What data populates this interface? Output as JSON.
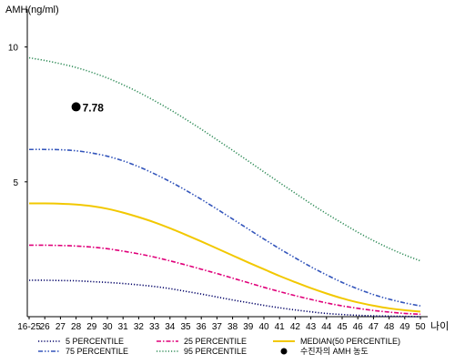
{
  "chart_data": {
    "type": "line",
    "ylabel": "AMH(ng/ml)",
    "xlabel": "나이",
    "x_categories": [
      "16-25",
      "26",
      "27",
      "28",
      "29",
      "30",
      "31",
      "32",
      "33",
      "34",
      "35",
      "36",
      "37",
      "38",
      "39",
      "40",
      "41",
      "42",
      "43",
      "44",
      "45",
      "46",
      "47",
      "48",
      "49",
      "50"
    ],
    "ylim": [
      0,
      11
    ],
    "yticks": [
      5,
      10
    ],
    "series": [
      {
        "name": "5 PERCENTILE",
        "color": "#000066",
        "style": "dotted",
        "values": [
          1.35,
          1.35,
          1.34,
          1.33,
          1.3,
          1.27,
          1.23,
          1.18,
          1.12,
          1.04,
          0.94,
          0.84,
          0.73,
          0.62,
          0.52,
          0.42,
          0.33,
          0.25,
          0.18,
          0.12,
          0.08,
          0.05,
          0.03,
          0.02,
          0.01,
          0.0
        ]
      },
      {
        "name": "25 PERCENTILE",
        "color": "#e0007a",
        "style": "dashdot",
        "values": [
          2.65,
          2.65,
          2.64,
          2.62,
          2.58,
          2.52,
          2.43,
          2.33,
          2.21,
          2.07,
          1.92,
          1.76,
          1.6,
          1.43,
          1.26,
          1.09,
          0.93,
          0.78,
          0.64,
          0.51,
          0.4,
          0.31,
          0.23,
          0.17,
          0.12,
          0.09
        ]
      },
      {
        "name": "MEDIAN(50 PERCENTILE)",
        "color": "#f2c800",
        "style": "solid",
        "values": [
          4.2,
          4.2,
          4.19,
          4.16,
          4.1,
          4.0,
          3.86,
          3.69,
          3.5,
          3.28,
          3.04,
          2.79,
          2.53,
          2.27,
          2.01,
          1.76,
          1.51,
          1.28,
          1.06,
          0.86,
          0.68,
          0.53,
          0.41,
          0.31,
          0.24,
          0.19
        ]
      },
      {
        "name": "75 PERCENTILE",
        "color": "#3355bb",
        "style": "dashdotdot",
        "values": [
          6.2,
          6.2,
          6.19,
          6.15,
          6.07,
          5.95,
          5.78,
          5.56,
          5.3,
          5.01,
          4.69,
          4.35,
          3.99,
          3.62,
          3.25,
          2.88,
          2.52,
          2.18,
          1.85,
          1.55,
          1.27,
          1.03,
          0.82,
          0.65,
          0.51,
          0.4
        ]
      },
      {
        "name": "95 PERCENTILE",
        "color": "#2e8b57",
        "style": "dotted",
        "values": [
          9.6,
          9.5,
          9.38,
          9.24,
          9.06,
          8.85,
          8.6,
          8.32,
          8.01,
          7.68,
          7.32,
          6.95,
          6.56,
          6.17,
          5.77,
          5.37,
          4.97,
          4.58,
          4.19,
          3.82,
          3.47,
          3.13,
          2.82,
          2.54,
          2.29,
          2.07
        ]
      }
    ],
    "point": {
      "name": "수진자의 AMH 농도",
      "x": "28",
      "value": 7.78,
      "label": "7.78",
      "color": "#000000"
    },
    "legend": {
      "position": "bottom",
      "order": [
        "5 PERCENTILE",
        "25 PERCENTILE",
        "MEDIAN(50 PERCENTILE)",
        "75 PERCENTILE",
        "95 PERCENTILE",
        "수진자의 AMH 농도"
      ]
    }
  }
}
